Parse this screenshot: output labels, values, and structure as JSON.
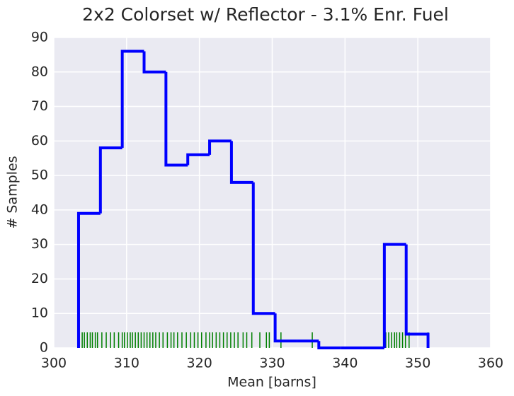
{
  "chart_data": {
    "type": "histogram",
    "title": "2x2 Colorset w/ Reflector - 3.1% Enr. Fuel",
    "xlabel": "Mean [barns]",
    "ylabel": "# Samples",
    "bins": [
      303.4,
      306.4,
      309.4,
      312.4,
      315.4,
      318.4,
      321.4,
      324.4,
      327.4,
      330.4,
      333.4,
      336.4,
      339.4,
      342.4,
      345.4,
      348.4,
      351.4
    ],
    "values": [
      39,
      58,
      86,
      80,
      53,
      56,
      60,
      48,
      10,
      2,
      2,
      0,
      0,
      0,
      30,
      4
    ],
    "color": "#0000ff",
    "rug": [
      303.5,
      303.9,
      304.2,
      304.6,
      305.0,
      305.3,
      305.7,
      306.0,
      306.6,
      307.2,
      307.8,
      308.3,
      308.9,
      309.4,
      309.7,
      310.1,
      310.5,
      310.8,
      311.2,
      311.6,
      312.0,
      312.4,
      312.8,
      313.2,
      313.6,
      314.0,
      314.5,
      315.0,
      315.6,
      316.1,
      316.5,
      317.0,
      317.6,
      318.2,
      318.8,
      319.3,
      319.8,
      320.3,
      320.9,
      321.4,
      321.8,
      322.3,
      322.8,
      323.3,
      323.8,
      324.3,
      324.8,
      325.3,
      326.0,
      326.5,
      327.2,
      328.3,
      329.2,
      329.6,
      331.2,
      335.5,
      345.6,
      346.0,
      346.4,
      346.8,
      347.1,
      347.5,
      347.9,
      348.3,
      348.8,
      351.4
    ],
    "rug_color": "#008000",
    "xlim": [
      300,
      360
    ],
    "xticks": [
      300,
      310,
      320,
      330,
      340,
      350,
      360
    ],
    "ylim": [
      0,
      90
    ],
    "yticks": [
      0,
      10,
      20,
      30,
      40,
      50,
      60,
      70,
      80,
      90
    ],
    "grid": true
  }
}
